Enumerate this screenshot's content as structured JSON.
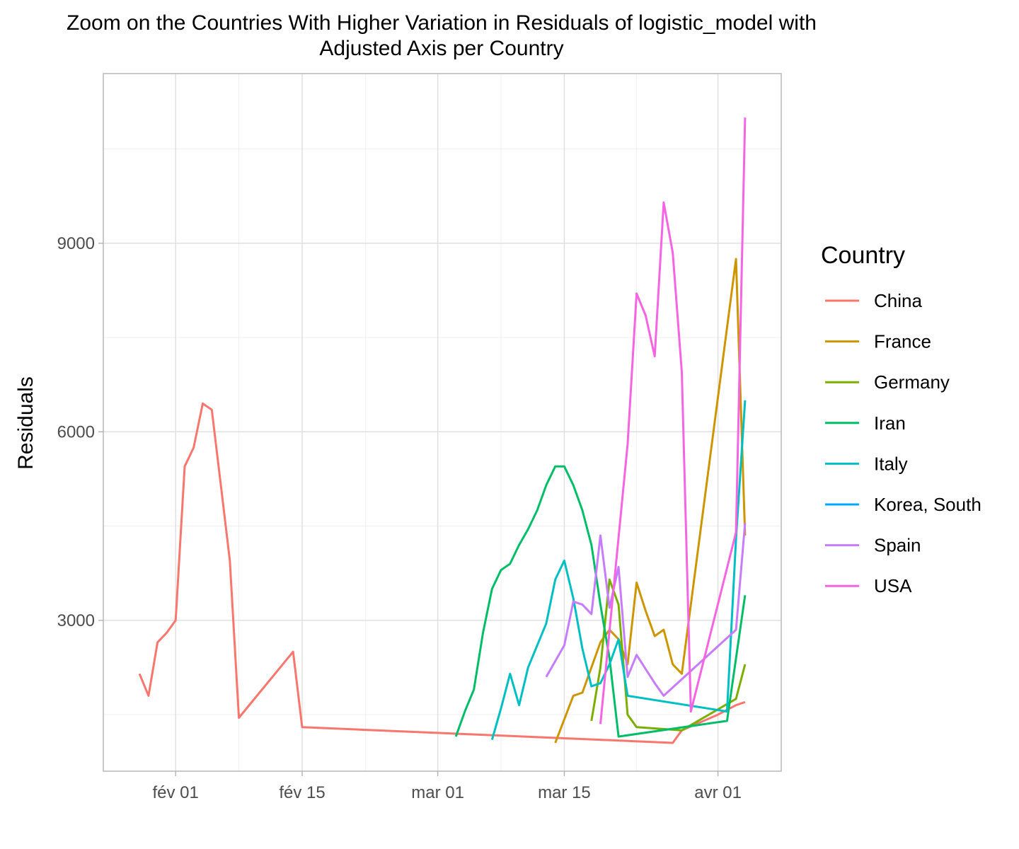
{
  "chart_data": {
    "type": "line",
    "title": "Zoom on the Countries With Higher Variation in Residuals of logistic_model with",
    "subtitle": "Adjusted Axis per Country",
    "xlabel": "",
    "ylabel": "Residuals",
    "x_type": "date",
    "xlim": [
      "2020-01-24",
      "2020-04-08"
    ],
    "ylim": [
      600,
      11700
    ],
    "x_ticks": [
      {
        "date": "2020-02-01",
        "label": "fév 01"
      },
      {
        "date": "2020-02-15",
        "label": "fév 15"
      },
      {
        "date": "2020-03-01",
        "label": "mar 01"
      },
      {
        "date": "2020-03-15",
        "label": "mar 15"
      },
      {
        "date": "2020-04-01",
        "label": "avr 01"
      }
    ],
    "x_minor_ticks": [
      "2020-02-08",
      "2020-02-22",
      "2020-03-08",
      "2020-03-23"
    ],
    "y_ticks": [
      {
        "value": 3000,
        "label": "3000"
      },
      {
        "value": 6000,
        "label": "6000"
      },
      {
        "value": 9000,
        "label": "9000"
      }
    ],
    "y_minor_ticks": [
      1500,
      4500,
      7500,
      10500
    ],
    "grid": true,
    "legend": {
      "title": "Country",
      "position": "right"
    },
    "series": [
      {
        "name": "China",
        "color": "#F8766D",
        "points": [
          [
            "2020-01-28",
            2150
          ],
          [
            "2020-01-29",
            1800
          ],
          [
            "2020-01-30",
            2650
          ],
          [
            "2020-01-31",
            2800
          ],
          [
            "2020-02-01",
            3000
          ],
          [
            "2020-02-02",
            5450
          ],
          [
            "2020-02-03",
            5750
          ],
          [
            "2020-02-04",
            6450
          ],
          [
            "2020-02-05",
            6350
          ],
          [
            "2020-02-06",
            5150
          ],
          [
            "2020-02-07",
            3950
          ],
          [
            "2020-02-08",
            1450
          ],
          [
            "2020-02-14",
            2500
          ],
          [
            "2020-02-15",
            1300
          ],
          [
            "2020-03-27",
            1050
          ],
          [
            "2020-03-28",
            1250
          ],
          [
            "2020-04-01",
            1500
          ],
          [
            "2020-04-03",
            1650
          ],
          [
            "2020-04-04",
            1700
          ]
        ]
      },
      {
        "name": "France",
        "color": "#CD9600",
        "points": [
          [
            "2020-03-14",
            1050
          ],
          [
            "2020-03-16",
            1800
          ],
          [
            "2020-03-17",
            1850
          ],
          [
            "2020-03-19",
            2650
          ],
          [
            "2020-03-20",
            2850
          ],
          [
            "2020-03-21",
            2700
          ],
          [
            "2020-03-22",
            2300
          ],
          [
            "2020-03-23",
            3600
          ],
          [
            "2020-03-24",
            3150
          ],
          [
            "2020-03-25",
            2750
          ],
          [
            "2020-03-26",
            2850
          ],
          [
            "2020-03-27",
            2300
          ],
          [
            "2020-03-28",
            2150
          ],
          [
            "2020-04-03",
            8750
          ],
          [
            "2020-04-04",
            4350
          ]
        ]
      },
      {
        "name": "Germany",
        "color": "#7CAE00",
        "points": [
          [
            "2020-03-18",
            1400
          ],
          [
            "2020-03-19",
            2250
          ],
          [
            "2020-03-20",
            3650
          ],
          [
            "2020-03-21",
            3250
          ],
          [
            "2020-03-22",
            1500
          ],
          [
            "2020-03-23",
            1300
          ],
          [
            "2020-03-28",
            1250
          ],
          [
            "2020-04-03",
            1750
          ],
          [
            "2020-04-04",
            2300
          ]
        ]
      },
      {
        "name": "Iran",
        "color": "#00BE67",
        "points": [
          [
            "2020-03-03",
            1150
          ],
          [
            "2020-03-04",
            1550
          ],
          [
            "2020-03-05",
            1900
          ],
          [
            "2020-03-06",
            2800
          ],
          [
            "2020-03-07",
            3500
          ],
          [
            "2020-03-08",
            3800
          ],
          [
            "2020-03-09",
            3900
          ],
          [
            "2020-03-10",
            4200
          ],
          [
            "2020-03-11",
            4450
          ],
          [
            "2020-03-12",
            4750
          ],
          [
            "2020-03-13",
            5150
          ],
          [
            "2020-03-14",
            5450
          ],
          [
            "2020-03-15",
            5450
          ],
          [
            "2020-03-16",
            5150
          ],
          [
            "2020-03-17",
            4750
          ],
          [
            "2020-03-18",
            4200
          ],
          [
            "2020-03-19",
            3250
          ],
          [
            "2020-03-20",
            2400
          ],
          [
            "2020-03-21",
            1150
          ],
          [
            "2020-04-02",
            1400
          ],
          [
            "2020-04-04",
            3400
          ]
        ]
      },
      {
        "name": "Italy",
        "color": "#00BFC4",
        "points": [
          [
            "2020-03-07",
            1100
          ],
          [
            "2020-03-08",
            1600
          ],
          [
            "2020-03-09",
            2150
          ],
          [
            "2020-03-10",
            1650
          ],
          [
            "2020-03-11",
            2250
          ],
          [
            "2020-03-12",
            2600
          ],
          [
            "2020-03-13",
            2950
          ],
          [
            "2020-03-14",
            3650
          ],
          [
            "2020-03-15",
            3950
          ],
          [
            "2020-03-16",
            3350
          ],
          [
            "2020-03-17",
            2550
          ],
          [
            "2020-03-18",
            1950
          ],
          [
            "2020-03-19",
            2000
          ],
          [
            "2020-03-20",
            2300
          ],
          [
            "2020-03-21",
            2700
          ],
          [
            "2020-03-22",
            1800
          ],
          [
            "2020-04-02",
            1550
          ],
          [
            "2020-04-03",
            4300
          ],
          [
            "2020-04-04",
            6500
          ]
        ]
      },
      {
        "name": "Korea, South",
        "color": "#00A9FF",
        "points": []
      },
      {
        "name": "Spain",
        "color": "#C77CFF",
        "points": [
          [
            "2020-03-13",
            2100
          ],
          [
            "2020-03-15",
            2600
          ],
          [
            "2020-03-16",
            3300
          ],
          [
            "2020-03-17",
            3250
          ],
          [
            "2020-03-18",
            3100
          ],
          [
            "2020-03-19",
            4350
          ],
          [
            "2020-03-20",
            3200
          ],
          [
            "2020-03-21",
            3850
          ],
          [
            "2020-03-22",
            2100
          ],
          [
            "2020-03-23",
            2450
          ],
          [
            "2020-03-25",
            2000
          ],
          [
            "2020-03-26",
            1800
          ],
          [
            "2020-04-03",
            2850
          ],
          [
            "2020-04-04",
            4550
          ]
        ]
      },
      {
        "name": "USA",
        "color": "#F564E3",
        "points": [
          [
            "2020-03-19",
            1350
          ],
          [
            "2020-03-22",
            5800
          ],
          [
            "2020-03-23",
            8200
          ],
          [
            "2020-03-24",
            7850
          ],
          [
            "2020-03-25",
            7200
          ],
          [
            "2020-03-26",
            9650
          ],
          [
            "2020-03-27",
            8850
          ],
          [
            "2020-03-28",
            6950
          ],
          [
            "2020-03-29",
            1550
          ],
          [
            "2020-04-03",
            4400
          ],
          [
            "2020-04-04",
            11000
          ]
        ]
      }
    ]
  }
}
